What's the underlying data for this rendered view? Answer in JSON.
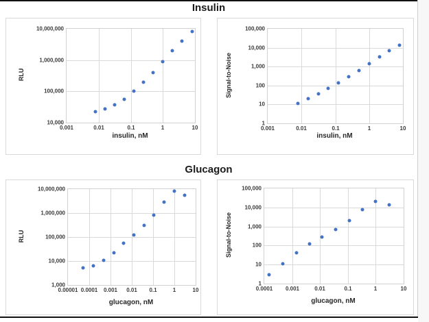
{
  "page": {
    "titles": [
      "Insulin",
      "Glucagon"
    ],
    "background": "#ffffff",
    "rule_color": "#111111",
    "gridline_color": "#d9d9d9",
    "marker_color": "#4472C4"
  },
  "chart_data": [
    {
      "id": "insulin-rlu",
      "type": "scatter",
      "group_title": "Insulin",
      "xlabel": "insulin, nM",
      "ylabel": "RLU",
      "x_scale": "log",
      "y_scale": "log",
      "xlim": [
        0.001,
        10
      ],
      "ylim": [
        10000,
        10000000
      ],
      "x_tick_labels": [
        "0.001",
        "0.01",
        "0.1",
        "1",
        "10"
      ],
      "y_tick_labels": [
        "10,000,000",
        "1,000,000",
        "100,000",
        "10,000"
      ],
      "grid": true,
      "legend": "none",
      "marker_color": "#4472C4",
      "x": [
        0.0078,
        0.0156,
        0.0313,
        0.0625,
        0.125,
        0.25,
        0.5,
        1,
        2,
        4,
        8
      ],
      "y": [
        22000,
        27000,
        38000,
        57000,
        103000,
        195000,
        400000,
        880000,
        1950000,
        4100000,
        8000000
      ]
    },
    {
      "id": "insulin-signal-to-noise",
      "type": "scatter",
      "group_title": "Insulin",
      "xlabel": "insulin, nM",
      "ylabel": "Signal-to-Noise",
      "x_scale": "log",
      "y_scale": "log",
      "xlim": [
        0.001,
        10
      ],
      "ylim": [
        1,
        100000
      ],
      "x_tick_labels": [
        "0.001",
        "0.01",
        "0.1",
        "1",
        "10"
      ],
      "y_tick_labels": [
        "100,000",
        "10,000",
        "1,000",
        "100",
        "10",
        "1"
      ],
      "grid": true,
      "legend": "none",
      "marker_color": "#4472C4",
      "x": [
        0.0078,
        0.0156,
        0.0313,
        0.0625,
        0.125,
        0.25,
        0.5,
        1,
        2,
        4,
        8
      ],
      "y": [
        11,
        20,
        37,
        70,
        140,
        295,
        630,
        1400,
        3300,
        7000,
        14000
      ]
    },
    {
      "id": "glucagon-rlu",
      "type": "scatter",
      "group_title": "Glucagon",
      "xlabel": "glucagon, nM",
      "ylabel": "RLU",
      "x_scale": "log",
      "y_scale": "log",
      "xlim": [
        1e-05,
        10
      ],
      "ylim": [
        1000,
        10000000
      ],
      "x_tick_labels": [
        "0.00001",
        "0.0001",
        "0.001",
        "0.01",
        "0.1",
        "1",
        "10"
      ],
      "y_tick_labels": [
        "10,000,000",
        "1,000,000",
        "100,000",
        "10,000",
        "1,000"
      ],
      "grid": true,
      "legend": "none",
      "marker_color": "#4472C4",
      "x": [
        5e-05,
        0.00015,
        0.00046,
        0.0014,
        0.0041,
        0.012,
        0.037,
        0.11,
        0.33,
        1,
        3
      ],
      "y": [
        5200,
        6300,
        10500,
        21500,
        55000,
        125000,
        300000,
        850000,
        2900000,
        8000000,
        5700000
      ]
    },
    {
      "id": "glucagon-signal-to-noise",
      "type": "scatter",
      "group_title": "Glucagon",
      "xlabel": "glucagon, nM",
      "ylabel": "Signal-to-Noise",
      "x_scale": "log",
      "y_scale": "log",
      "xlim": [
        0.0001,
        10
      ],
      "ylim": [
        1,
        100000
      ],
      "x_tick_labels": [
        "0.0001",
        "0.001",
        "0.01",
        "0.1",
        "1",
        "10"
      ],
      "y_tick_labels": [
        "100,000",
        "10,000",
        "1,000",
        "100",
        "10",
        "1"
      ],
      "grid": true,
      "legend": "none",
      "marker_color": "#4472C4",
      "x": [
        0.00015,
        0.00046,
        0.0014,
        0.0041,
        0.012,
        0.037,
        0.11,
        0.33,
        1,
        3
      ],
      "y": [
        3,
        11,
        42,
        125,
        270,
        720,
        2000,
        7700,
        20000,
        13500
      ]
    }
  ]
}
